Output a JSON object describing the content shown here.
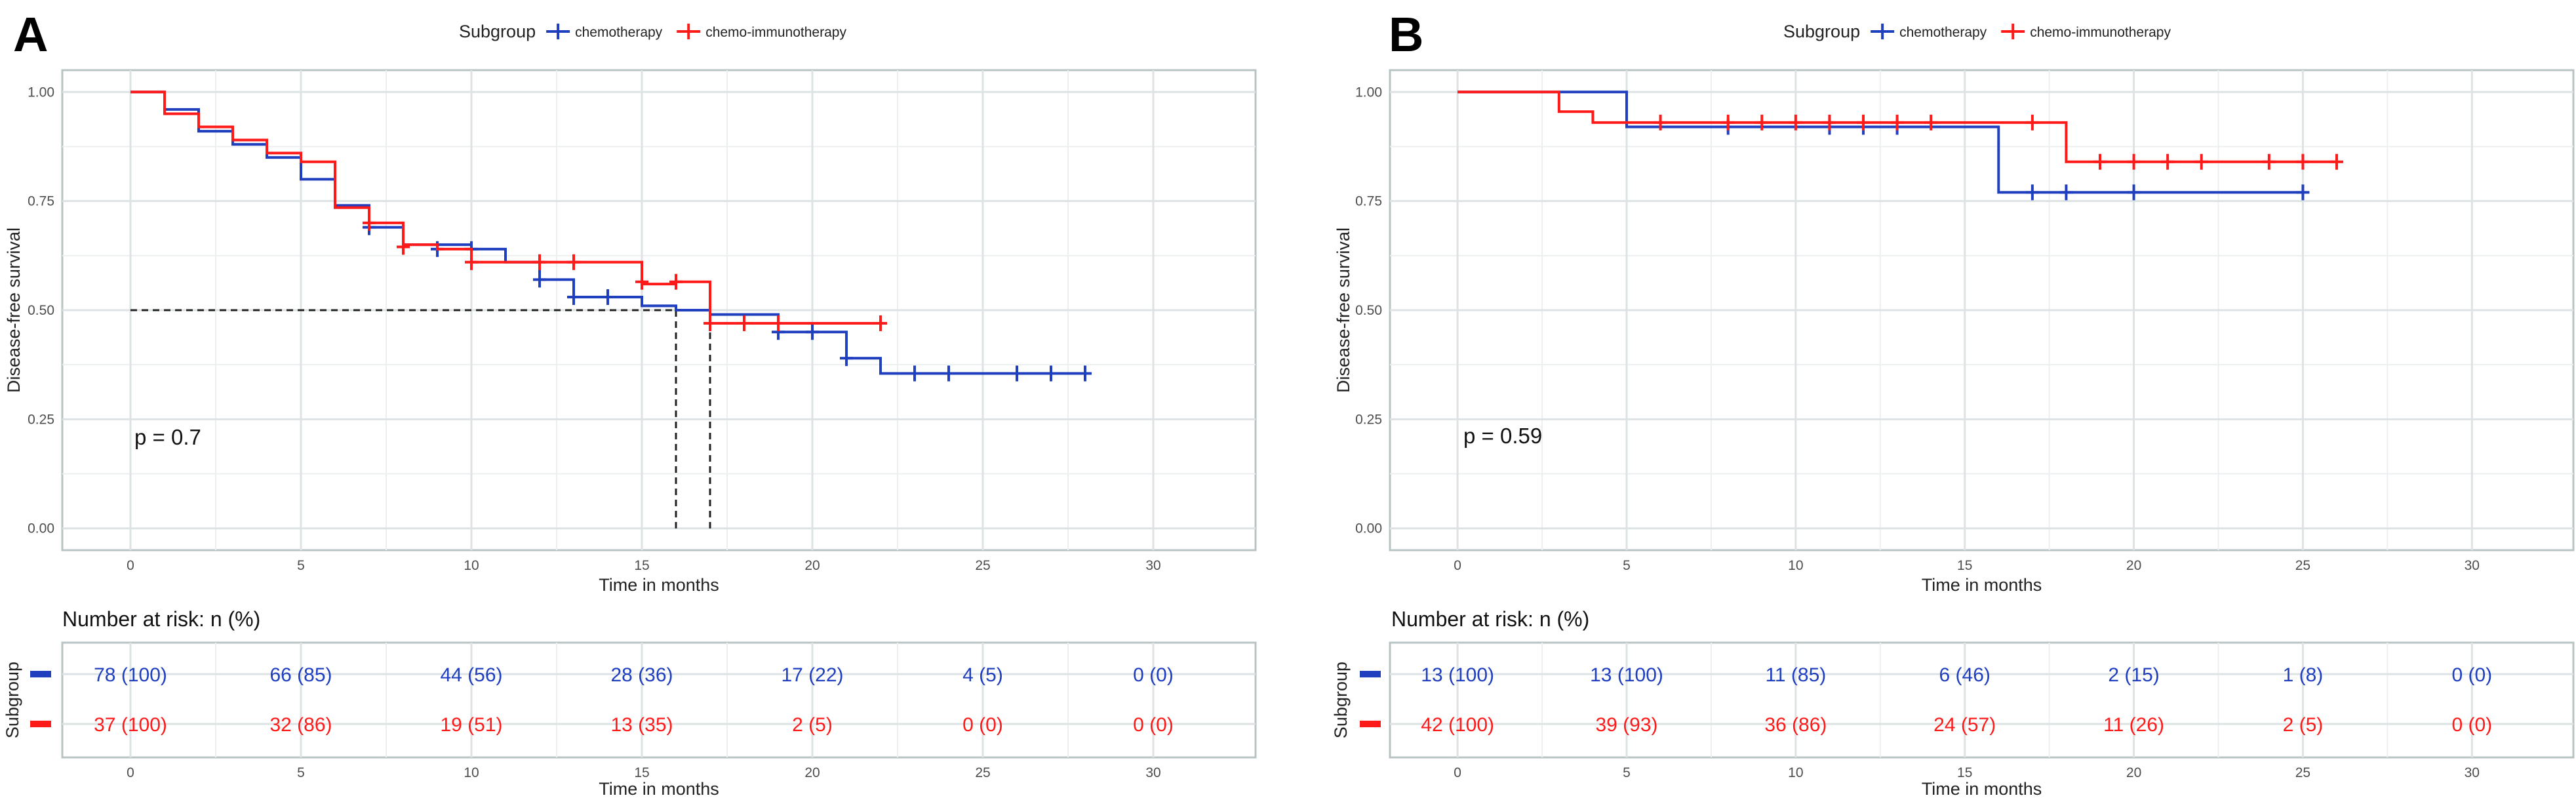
{
  "chart_data": [
    {
      "type": "line",
      "panel_label": "A",
      "legend": {
        "title": "Subgroup",
        "position": "top",
        "entries": [
          {
            "label": "chemotherapy",
            "color": "#1f3fbf"
          },
          {
            "label": "chemo-immunotherapy",
            "color": "#ff1a1a"
          }
        ]
      },
      "xlabel": "Time in months",
      "ylabel": "Disease-free survival",
      "xlim": [
        -2,
        33
      ],
      "ylim": [
        -0.05,
        1.05
      ],
      "x_ticks": [
        "0",
        "5",
        "10",
        "15",
        "20",
        "25",
        "30"
      ],
      "y_ticks": [
        "0.00",
        "0.25",
        "0.50",
        "0.75",
        "1.00"
      ],
      "grid": true,
      "pvalue": "p = 0.7",
      "median_lines": [
        16,
        17
      ],
      "series": [
        {
          "name": "chemotherapy",
          "color": "#1f3fbf",
          "steps": [
            [
              0,
              1.0
            ],
            [
              1,
              0.96
            ],
            [
              2,
              0.91
            ],
            [
              3,
              0.88
            ],
            [
              4,
              0.85
            ],
            [
              5,
              0.8
            ],
            [
              6,
              0.74
            ],
            [
              7,
              0.69
            ],
            [
              8,
              0.65
            ],
            [
              10,
              0.64
            ],
            [
              11,
              0.61
            ],
            [
              12,
              0.57
            ],
            [
              13,
              0.53
            ],
            [
              15,
              0.51
            ],
            [
              16,
              0.5
            ],
            [
              17,
              0.49
            ],
            [
              19,
              0.45
            ],
            [
              20,
              0.45
            ],
            [
              21,
              0.39
            ],
            [
              22,
              0.355
            ],
            [
              28,
              0.355
            ]
          ],
          "censor": [
            [
              7,
              0.69
            ],
            [
              9,
              0.64
            ],
            [
              10,
              0.64
            ],
            [
              12,
              0.57
            ],
            [
              13,
              0.53
            ],
            [
              14,
              0.53
            ],
            [
              19,
              0.45
            ],
            [
              20,
              0.45
            ],
            [
              21,
              0.39
            ],
            [
              23,
              0.355
            ],
            [
              24,
              0.355
            ],
            [
              26,
              0.355
            ],
            [
              27,
              0.355
            ],
            [
              28,
              0.355
            ]
          ]
        },
        {
          "name": "chemo-immunotherapy",
          "color": "#ff1a1a",
          "steps": [
            [
              0,
              1.0
            ],
            [
              1,
              0.95
            ],
            [
              2,
              0.92
            ],
            [
              3,
              0.89
            ],
            [
              4,
              0.86
            ],
            [
              5,
              0.84
            ],
            [
              6,
              0.735
            ],
            [
              7,
              0.7
            ],
            [
              8,
              0.65
            ],
            [
              9,
              0.64
            ],
            [
              10,
              0.61
            ],
            [
              12,
              0.61
            ],
            [
              15,
              0.56
            ],
            [
              16,
              0.565
            ],
            [
              17,
              0.47
            ],
            [
              22,
              0.47
            ]
          ],
          "censor": [
            [
              7,
              0.7
            ],
            [
              8,
              0.645
            ],
            [
              10,
              0.61
            ],
            [
              12,
              0.61
            ],
            [
              13,
              0.61
            ],
            [
              15,
              0.565
            ],
            [
              16,
              0.565
            ],
            [
              17,
              0.47
            ],
            [
              18,
              0.47
            ],
            [
              19,
              0.47
            ],
            [
              22,
              0.47
            ]
          ]
        }
      ],
      "risk_table": {
        "title": "Number at risk: n (%)",
        "xlabel": "Time in months",
        "ylabel": "Subgroup",
        "times": [
          0,
          5,
          10,
          15,
          20,
          25,
          30
        ],
        "rows": [
          {
            "group": "chemotherapy",
            "color": "#1f3fbf",
            "values": [
              "78 (100)",
              "66 (85)",
              "44 (56)",
              "28 (36)",
              "17 (22)",
              "4 (5)",
              "0 (0)"
            ]
          },
          {
            "group": "chemo-immunotherapy",
            "color": "#ff1a1a",
            "values": [
              "37 (100)",
              "32 (86)",
              "19 (51)",
              "13 (35)",
              "2 (5)",
              "0 (0)",
              "0 (0)"
            ]
          }
        ]
      }
    },
    {
      "type": "line",
      "panel_label": "B",
      "legend": {
        "title": "Subgroup",
        "position": "top",
        "entries": [
          {
            "label": "chemotherapy",
            "color": "#1f3fbf"
          },
          {
            "label": "chemo-immunotherapy",
            "color": "#ff1a1a"
          }
        ]
      },
      "xlabel": "Time in months",
      "ylabel": "Disease-free survival",
      "xlim": [
        -2,
        33
      ],
      "ylim": [
        -0.05,
        1.05
      ],
      "x_ticks": [
        "0",
        "5",
        "10",
        "15",
        "20",
        "25",
        "30"
      ],
      "y_ticks": [
        "0.00",
        "0.25",
        "0.50",
        "0.75",
        "1.00"
      ],
      "grid": true,
      "pvalue": "p = 0.59",
      "median_lines": [],
      "series": [
        {
          "name": "chemotherapy",
          "color": "#1f3fbf",
          "steps": [
            [
              0,
              1.0
            ],
            [
              5,
              0.92
            ],
            [
              16,
              0.77
            ],
            [
              25,
              0.77
            ]
          ],
          "censor": [
            [
              8,
              0.92
            ],
            [
              11,
              0.92
            ],
            [
              12,
              0.92
            ],
            [
              13,
              0.92
            ],
            [
              17,
              0.77
            ],
            [
              18,
              0.77
            ],
            [
              20,
              0.77
            ],
            [
              25,
              0.77
            ]
          ]
        },
        {
          "name": "chemo-immunotherapy",
          "color": "#ff1a1a",
          "steps": [
            [
              0,
              1.0
            ],
            [
              3,
              0.955
            ],
            [
              4,
              0.93
            ],
            [
              18,
              0.84
            ],
            [
              26,
              0.84
            ]
          ],
          "censor": [
            [
              6,
              0.93
            ],
            [
              8,
              0.93
            ],
            [
              9,
              0.93
            ],
            [
              10,
              0.93
            ],
            [
              11,
              0.93
            ],
            [
              12,
              0.93
            ],
            [
              13,
              0.93
            ],
            [
              14,
              0.93
            ],
            [
              17,
              0.93
            ],
            [
              19,
              0.84
            ],
            [
              20,
              0.84
            ],
            [
              21,
              0.84
            ],
            [
              22,
              0.84
            ],
            [
              24,
              0.84
            ],
            [
              25,
              0.84
            ],
            [
              26,
              0.84
            ]
          ]
        }
      ],
      "risk_table": {
        "title": "Number at risk: n (%)",
        "xlabel": "Time in months",
        "ylabel": "Subgroup",
        "times": [
          0,
          5,
          10,
          15,
          20,
          25,
          30
        ],
        "rows": [
          {
            "group": "chemotherapy",
            "color": "#1f3fbf",
            "values": [
              "13 (100)",
              "13 (100)",
              "11 (85)",
              "6 (46)",
              "2 (15)",
              "1 (8)",
              "0 (0)"
            ]
          },
          {
            "group": "chemo-immunotherapy",
            "color": "#ff1a1a",
            "values": [
              "42 (100)",
              "39 (93)",
              "36 (86)",
              "24 (57)",
              "11 (26)",
              "2 (5)",
              "0 (0)"
            ]
          }
        ]
      }
    }
  ]
}
